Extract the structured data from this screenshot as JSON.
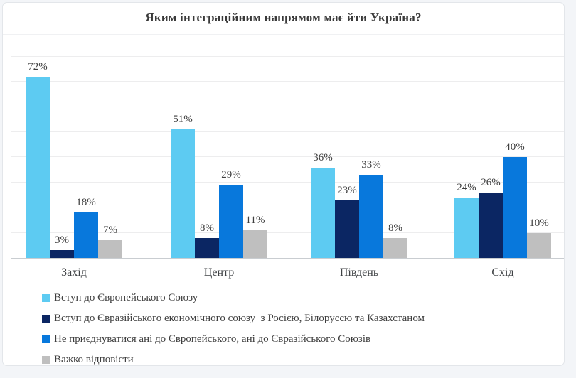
{
  "chart_data": {
    "type": "bar",
    "title": "Яким інтеграційним напрямом має йти Україна?",
    "categories": [
      "Захід",
      "Центр",
      "Південь",
      "Схід"
    ],
    "series": [
      {
        "name": "Вступ до Європейського Союзу",
        "color": "#5dcbf2",
        "values": [
          72,
          51,
          36,
          24
        ]
      },
      {
        "name": "Вступ до Євразійського економічного союзу  з Росією, Білоруссю та Казахстаном",
        "color": "#0b2663",
        "values": [
          3,
          8,
          23,
          26
        ]
      },
      {
        "name": "Не приєднуватися ані до Європейського, ані до Євразійського Союзів",
        "color": "#0878dc",
        "values": [
          18,
          29,
          33,
          40
        ]
      },
      {
        "name": "Важко відповісти",
        "color": "#bfbfbf",
        "values": [
          7,
          11,
          8,
          10
        ]
      }
    ],
    "value_suffix": "%",
    "ylim": [
      0,
      80
    ],
    "grid_step": 10,
    "grid": "horizontal",
    "legend_position": "bottom-left",
    "colors": {
      "text": "#3e3e3e",
      "axis_line": "#c9cdd1",
      "gridline": "#ededee",
      "background": "#ffffff"
    }
  }
}
